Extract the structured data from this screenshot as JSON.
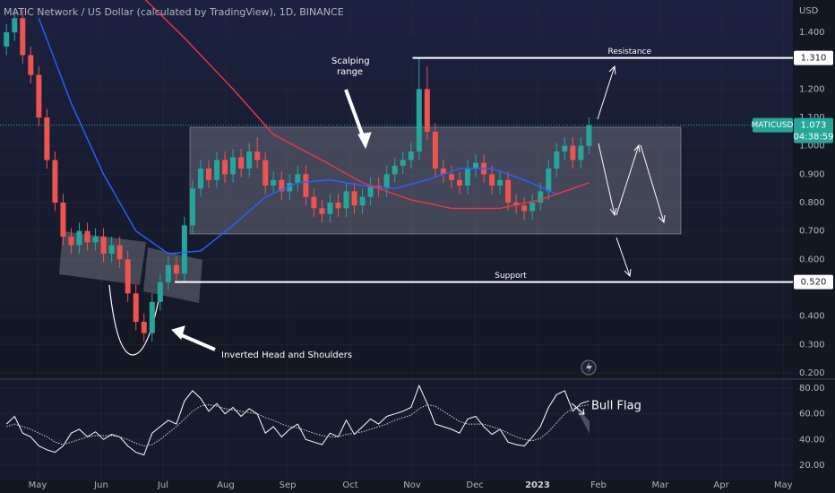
{
  "chart_data": [
    {
      "type": "candlestick",
      "title": "MATIC Network / US Dollar (calculated by TradingView), 1D, BINANCE",
      "currency": "USD",
      "symbol": "MATICUSD",
      "last_price": 1.073,
      "last_price_label": "1.073",
      "countdown": "04:38:59",
      "up_color": "#26a69a",
      "down_color": "#ef5350",
      "x": [
        0,
        1,
        2,
        3,
        4,
        5,
        6,
        7,
        8,
        9,
        10,
        11,
        12,
        13,
        14,
        15,
        16,
        17,
        18,
        19,
        20,
        21,
        22,
        23,
        24,
        25,
        26,
        27,
        28,
        29,
        30,
        31,
        32,
        33,
        34,
        35,
        36,
        37,
        38,
        39,
        40,
        41,
        42,
        43,
        44,
        45,
        46,
        47,
        48,
        49,
        50,
        51,
        52,
        53,
        54,
        55,
        56,
        57,
        58,
        59,
        60,
        61,
        62,
        63,
        64,
        65,
        66,
        67,
        68,
        69,
        70,
        71,
        72
      ],
      "open": [
        1.35,
        1.4,
        1.45,
        1.32,
        1.25,
        1.1,
        0.95,
        0.8,
        0.68,
        0.65,
        0.7,
        0.66,
        0.68,
        0.62,
        0.65,
        0.6,
        0.48,
        0.38,
        0.34,
        0.45,
        0.52,
        0.58,
        0.55,
        0.72,
        0.85,
        0.92,
        0.88,
        0.95,
        0.9,
        0.96,
        0.92,
        0.98,
        0.95,
        0.86,
        0.88,
        0.84,
        0.87,
        0.9,
        0.82,
        0.78,
        0.76,
        0.8,
        0.78,
        0.84,
        0.79,
        0.82,
        0.86,
        0.85,
        0.9,
        0.93,
        0.95,
        0.98,
        1.2,
        1.05,
        0.92,
        0.9,
        0.88,
        0.86,
        0.92,
        0.94,
        0.9,
        0.86,
        0.88,
        0.8,
        0.79,
        0.77,
        0.8,
        0.84,
        0.92,
        0.98,
        1.0,
        0.95,
        1.0
      ],
      "high": [
        1.43,
        1.48,
        1.48,
        1.35,
        1.28,
        1.13,
        0.98,
        0.83,
        0.71,
        0.73,
        0.73,
        0.71,
        0.71,
        0.68,
        0.68,
        0.63,
        0.51,
        0.41,
        0.48,
        0.55,
        0.61,
        0.61,
        0.75,
        0.88,
        0.95,
        0.95,
        0.98,
        0.98,
        0.99,
        0.99,
        1.01,
        1.03,
        0.98,
        0.91,
        0.91,
        0.9,
        0.93,
        0.93,
        0.85,
        0.81,
        0.83,
        0.83,
        0.87,
        0.87,
        0.85,
        0.89,
        0.89,
        0.93,
        0.96,
        0.98,
        1.01,
        1.31,
        1.28,
        1.08,
        0.95,
        0.93,
        0.91,
        0.95,
        0.97,
        0.97,
        0.93,
        0.91,
        0.91,
        0.83,
        0.82,
        0.83,
        0.87,
        0.95,
        1.01,
        1.03,
        1.03,
        1.03,
        1.1
      ],
      "low": [
        1.32,
        1.37,
        1.29,
        1.22,
        1.07,
        0.92,
        0.77,
        0.65,
        0.62,
        0.62,
        0.63,
        0.63,
        0.59,
        0.59,
        0.57,
        0.45,
        0.35,
        0.31,
        0.31,
        0.42,
        0.49,
        0.52,
        0.52,
        0.69,
        0.82,
        0.85,
        0.85,
        0.87,
        0.87,
        0.89,
        0.89,
        0.92,
        0.83,
        0.83,
        0.81,
        0.81,
        0.84,
        0.79,
        0.75,
        0.73,
        0.73,
        0.75,
        0.75,
        0.76,
        0.76,
        0.79,
        0.82,
        0.82,
        0.87,
        0.9,
        0.92,
        0.95,
        1.02,
        0.89,
        0.87,
        0.85,
        0.83,
        0.83,
        0.89,
        0.87,
        0.83,
        0.83,
        0.77,
        0.76,
        0.74,
        0.74,
        0.77,
        0.81,
        0.89,
        0.95,
        0.92,
        0.92,
        0.97
      ],
      "close": [
        1.4,
        1.45,
        1.32,
        1.25,
        1.1,
        0.95,
        0.8,
        0.68,
        0.65,
        0.7,
        0.66,
        0.68,
        0.62,
        0.65,
        0.6,
        0.48,
        0.38,
        0.34,
        0.45,
        0.52,
        0.58,
        0.55,
        0.72,
        0.85,
        0.92,
        0.88,
        0.95,
        0.9,
        0.96,
        0.92,
        0.98,
        0.95,
        0.86,
        0.88,
        0.84,
        0.87,
        0.9,
        0.82,
        0.78,
        0.76,
        0.8,
        0.78,
        0.84,
        0.79,
        0.82,
        0.86,
        0.85,
        0.9,
        0.93,
        0.95,
        0.98,
        1.2,
        1.05,
        0.92,
        0.9,
        0.88,
        0.86,
        0.92,
        0.94,
        0.9,
        0.86,
        0.88,
        0.8,
        0.79,
        0.77,
        0.8,
        0.84,
        0.92,
        0.98,
        1.0,
        0.95,
        1.0,
        1.073
      ],
      "lines": [
        {
          "color": "#2962ff",
          "x": [
            4,
            8,
            12,
            16,
            20,
            24,
            28,
            32,
            36,
            40,
            44,
            48,
            52,
            56,
            60,
            64,
            68,
            72
          ],
          "values": [
            1.45,
            1.15,
            0.9,
            0.7,
            0.62,
            0.63,
            0.72,
            0.82,
            0.87,
            0.88,
            0.86,
            0.85,
            0.88,
            0.92,
            0.92,
            0.88,
            0.83,
            0.87
          ]
        },
        {
          "color": "#f23645",
          "x": [
            17,
            22,
            28,
            33,
            39,
            44,
            50,
            55,
            61,
            66,
            72
          ],
          "values": [
            1.52,
            1.38,
            1.2,
            1.04,
            0.95,
            0.87,
            0.81,
            0.78,
            0.78,
            0.81,
            0.87
          ]
        }
      ],
      "levels": [
        {
          "name": "Resistance",
          "value": 1.31,
          "label": "1.310",
          "from": 50.2
        },
        {
          "name": "Support",
          "value": 0.52,
          "label": "0.520",
          "from": 20.8
        }
      ],
      "annotations": [
        "Scalping",
        "range",
        "Inverted Head and Shoulders"
      ],
      "xlim": [
        -0.8,
        97.2
      ],
      "ylim": [
        0.181,
        1.514
      ],
      "yticks": [
        {
          "value": 1.4,
          "label": "1.400"
        },
        {
          "value": 1.2,
          "label": "1.200"
        },
        {
          "value": 1.1,
          "label": "1.100"
        },
        {
          "value": 1.0,
          "label": "1.000"
        },
        {
          "value": 0.9,
          "label": "0.900"
        },
        {
          "value": 0.8,
          "label": "0.800"
        },
        {
          "value": 0.7,
          "label": "0.700"
        },
        {
          "value": 0.6,
          "label": "0.600"
        },
        {
          "value": 0.4,
          "label": "0.400"
        },
        {
          "value": 0.3,
          "label": "0.300"
        },
        {
          "value": 0.2,
          "label": "0.200"
        }
      ],
      "xticks": [
        {
          "value": 3.85,
          "label": "May"
        },
        {
          "value": 11.71,
          "label": "Jun"
        },
        {
          "value": 19.35,
          "label": "Jul"
        },
        {
          "value": 27.1,
          "label": "Aug"
        },
        {
          "value": 34.75,
          "label": "Sep"
        },
        {
          "value": 42.5,
          "label": "Oct"
        },
        {
          "value": 50.14,
          "label": "Nov"
        },
        {
          "value": 57.9,
          "label": "Dec"
        },
        {
          "value": 65.64,
          "label": "2023"
        },
        {
          "value": 73.17,
          "label": "Feb"
        },
        {
          "value": 80.8,
          "label": "Mar"
        },
        {
          "value": 88.35,
          "label": "Apr"
        },
        {
          "value": 96.0,
          "label": "May"
        }
      ]
    },
    {
      "type": "line",
      "annotation": "Bull Flag",
      "x": [
        0,
        1,
        2,
        3,
        4,
        5,
        6,
        7,
        8,
        9,
        10,
        11,
        12,
        13,
        14,
        15,
        16,
        17,
        18,
        19,
        20,
        21,
        22,
        23,
        24,
        25,
        26,
        27,
        28,
        29,
        30,
        31,
        32,
        33,
        34,
        35,
        36,
        37,
        38,
        39,
        40,
        41,
        42,
        43,
        44,
        45,
        46,
        47,
        48,
        49,
        50,
        51,
        52,
        53,
        54,
        55,
        56,
        57,
        58,
        59,
        60,
        61,
        62,
        63,
        64,
        65,
        66,
        67,
        68,
        69,
        70,
        71,
        72
      ],
      "series": [
        {
          "color": "#ffffff",
          "dash": false,
          "values": [
            52,
            58,
            45,
            42,
            35,
            32,
            30,
            35,
            45,
            48,
            42,
            46,
            40,
            44,
            42,
            35,
            30,
            28,
            45,
            50,
            55,
            52,
            70,
            78,
            72,
            62,
            68,
            60,
            65,
            58,
            64,
            60,
            45,
            50,
            42,
            48,
            52,
            40,
            38,
            36,
            45,
            42,
            55,
            44,
            50,
            56,
            52,
            58,
            60,
            62,
            65,
            82,
            68,
            52,
            50,
            48,
            45,
            56,
            58,
            50,
            44,
            48,
            38,
            36,
            35,
            42,
            50,
            65,
            75,
            78,
            62,
            68,
            70
          ]
        },
        {
          "color": "#d1d4dc",
          "dash": true,
          "values": [
            50,
            52,
            50,
            48,
            45,
            42,
            38,
            36,
            38,
            40,
            42,
            43,
            43,
            43,
            42,
            40,
            37,
            35,
            36,
            40,
            45,
            50,
            56,
            62,
            66,
            67,
            66,
            64,
            63,
            62,
            61,
            60,
            57,
            55,
            52,
            50,
            49,
            47,
            45,
            43,
            42,
            42,
            44,
            45,
            46,
            48,
            50,
            52,
            55,
            57,
            59,
            64,
            67,
            66,
            62,
            58,
            54,
            52,
            52,
            52,
            50,
            48,
            45,
            42,
            40,
            39,
            41,
            46,
            53,
            60,
            64,
            66,
            67
          ]
        }
      ],
      "xlim": [
        -0.8,
        97.2
      ],
      "ylim": [
        8.1,
        86.3
      ],
      "yticks": [
        {
          "value": 80,
          "label": "80.00"
        },
        {
          "value": 60,
          "label": "60.00"
        },
        {
          "value": 40,
          "label": "40.00"
        },
        {
          "value": 20,
          "label": "20.00"
        }
      ]
    }
  ]
}
